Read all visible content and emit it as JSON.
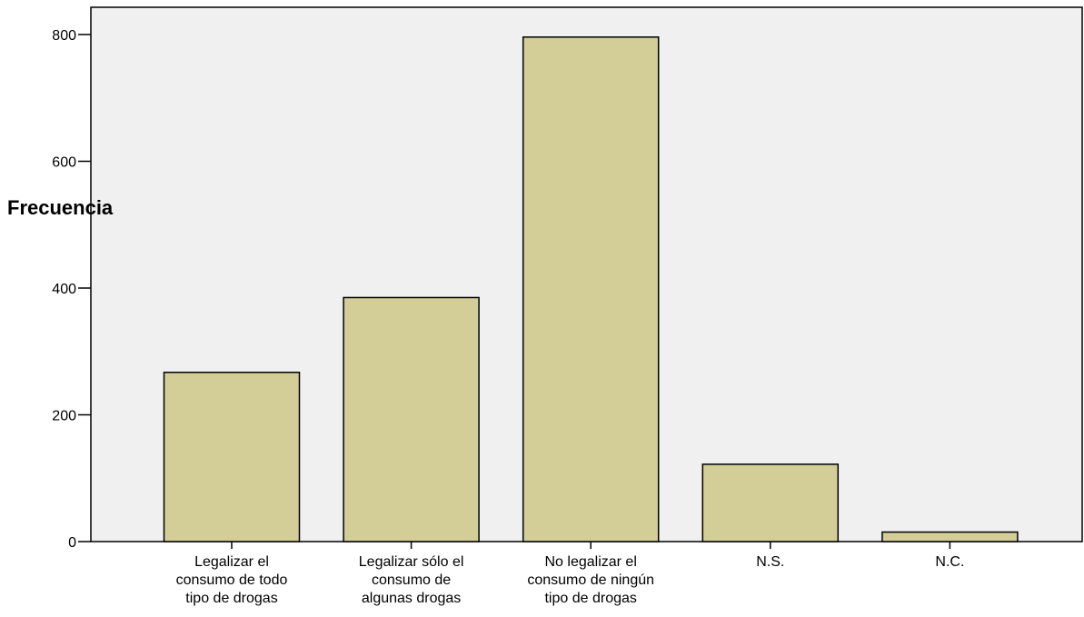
{
  "chart_data": {
    "type": "bar",
    "title": "",
    "xlabel": "",
    "ylabel": "Frecuencia",
    "categories": [
      [
        "Legalizar el",
        "consumo de todo",
        "tipo de drogas"
      ],
      [
        "Legalizar sólo el",
        "consumo de",
        "algunas drogas"
      ],
      [
        "No legalizar el",
        "consumo de ningún",
        "tipo de drogas"
      ],
      [
        "N.S."
      ],
      [
        "N.C."
      ]
    ],
    "values": [
      267,
      385,
      796,
      122,
      15
    ],
    "ylim": [
      0,
      800
    ],
    "yticks": [
      "0",
      "200",
      "400",
      "600",
      "800"
    ],
    "grid": false,
    "legend": "none",
    "colors": {
      "bar_fill": "#d3cd98",
      "bar_stroke": "#000000",
      "plot_background": "#f0f0f0"
    }
  }
}
